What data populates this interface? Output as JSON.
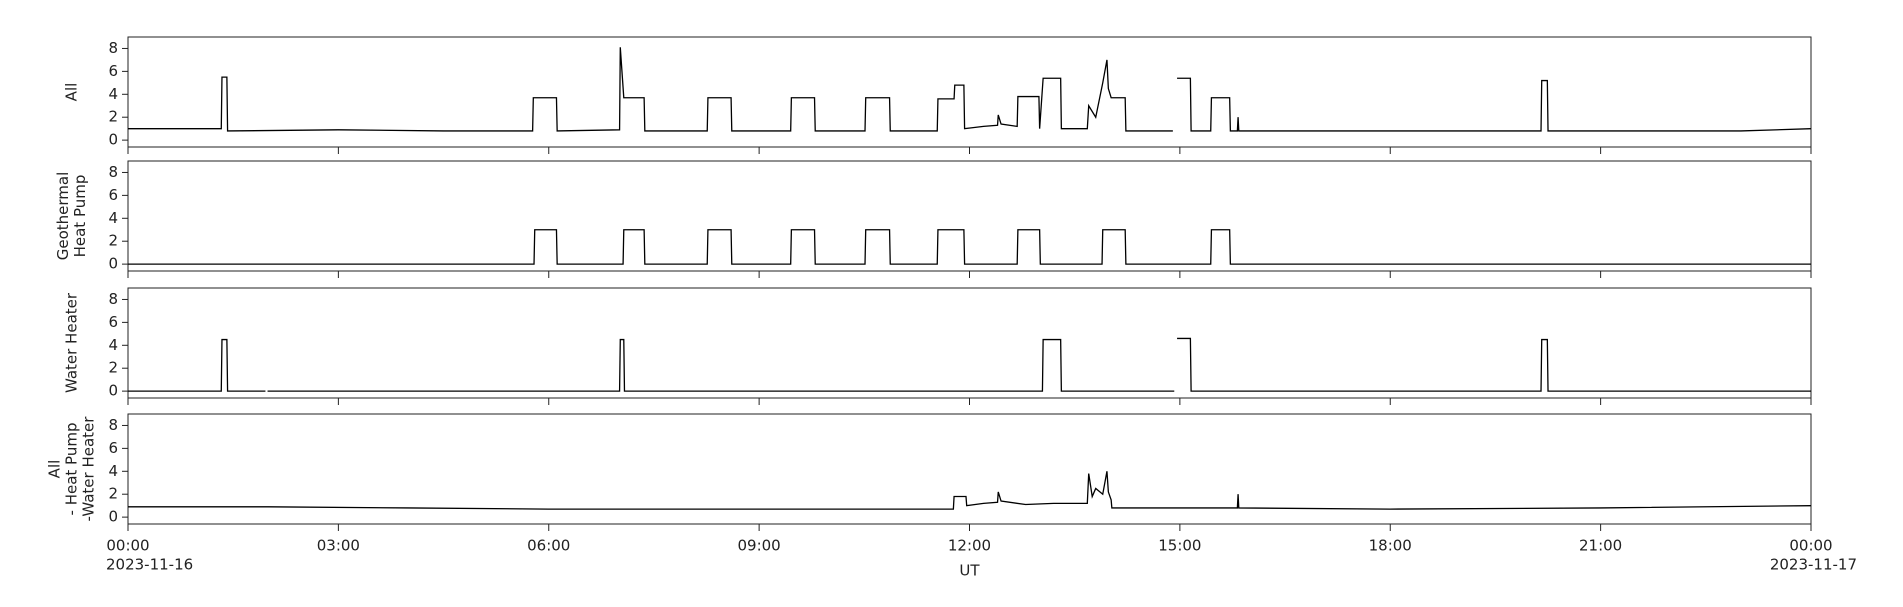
{
  "x_axis": {
    "label": "UT",
    "xlim": [
      0,
      24
    ],
    "xticks": [
      {
        "value": 0,
        "label": "00:00"
      },
      {
        "value": 3,
        "label": "03:00"
      },
      {
        "value": 6,
        "label": "06:00"
      },
      {
        "value": 9,
        "label": "09:00"
      },
      {
        "value": 12,
        "label": "12:00"
      },
      {
        "value": 15,
        "label": "15:00"
      },
      {
        "value": 18,
        "label": "18:00"
      },
      {
        "value": 21,
        "label": "21:00"
      },
      {
        "value": 24,
        "label": "00:00"
      }
    ],
    "date_labels": [
      "2023-11-16",
      "2023-11-17"
    ]
  },
  "chart_data": [
    {
      "type": "line",
      "ylabel": [
        "All"
      ],
      "color": "#000000",
      "ylim": [
        -0.6,
        9
      ],
      "yticks": [
        0,
        2,
        4,
        6,
        8
      ],
      "x": [
        0,
        1.33,
        1.34,
        1.41,
        1.42,
        3.0,
        4.5,
        5.77,
        5.78,
        6.11,
        6.12,
        7.01,
        7.02,
        7.07,
        7.36,
        7.37,
        8.26,
        8.27,
        8.6,
        8.61,
        9.45,
        9.46,
        9.79,
        9.8,
        10.51,
        10.52,
        10.86,
        10.87,
        11.54,
        11.55,
        11.78,
        11.79,
        11.92,
        11.93,
        12.2,
        12.4,
        12.41,
        12.45,
        12.68,
        12.69,
        12.99,
        13.0,
        13.05,
        13.3,
        13.31,
        13.68,
        13.7,
        13.8,
        13.9,
        13.96,
        13.98,
        14.02,
        14.22,
        14.23,
        14.9,
        14.93,
        14.96,
        15.15,
        15.16,
        15.44,
        15.45,
        15.71,
        15.72,
        15.82,
        15.83,
        15.84,
        18.0,
        20.15,
        20.16,
        20.24,
        20.25,
        23.0,
        24
      ],
      "values": [
        1.0,
        1.0,
        5.5,
        5.5,
        0.8,
        0.9,
        0.8,
        0.8,
        3.7,
        3.7,
        0.8,
        0.9,
        8.1,
        3.7,
        3.7,
        0.8,
        0.8,
        3.7,
        3.7,
        0.8,
        0.8,
        3.7,
        3.7,
        0.8,
        0.8,
        3.7,
        3.7,
        0.8,
        0.8,
        3.6,
        3.6,
        4.8,
        4.8,
        1.0,
        1.2,
        1.3,
        2.2,
        1.4,
        1.2,
        3.8,
        3.8,
        1.0,
        5.4,
        5.4,
        1.0,
        1.0,
        3.0,
        2.0,
        5.0,
        7.0,
        4.5,
        3.7,
        3.7,
        0.8,
        0.8,
        null,
        5.4,
        5.4,
        0.8,
        0.8,
        3.7,
        3.7,
        0.8,
        0.8,
        2.0,
        0.8,
        0.8,
        0.8,
        5.2,
        5.2,
        0.8,
        0.8,
        1.0
      ]
    },
    {
      "type": "line",
      "ylabel": [
        "Geothermal",
        "Heat Pump"
      ],
      "color": "#000000",
      "ylim": [
        -0.6,
        9
      ],
      "yticks": [
        0,
        2,
        4,
        6,
        8
      ],
      "x": [
        0,
        5.79,
        5.8,
        6.11,
        6.12,
        7.06,
        7.07,
        7.36,
        7.37,
        8.26,
        8.27,
        8.6,
        8.61,
        9.45,
        9.46,
        9.79,
        9.8,
        10.51,
        10.52,
        10.86,
        10.87,
        11.54,
        11.55,
        11.92,
        11.93,
        12.68,
        12.69,
        13.0,
        13.01,
        13.89,
        13.9,
        14.22,
        14.23,
        15.44,
        15.45,
        15.71,
        15.72,
        24
      ],
      "values": [
        0,
        0,
        3,
        3,
        0,
        0,
        3,
        3,
        0,
        0,
        3,
        3,
        0,
        0,
        3,
        3,
        0,
        0,
        3,
        3,
        0,
        0,
        3,
        3,
        0,
        0,
        3,
        3,
        0,
        0,
        3,
        3,
        0,
        0,
        3,
        3,
        0,
        0
      ]
    },
    {
      "type": "line",
      "ylabel": [
        "Water Heater"
      ],
      "color": "#000000",
      "ylim": [
        -0.6,
        9
      ],
      "yticks": [
        0,
        2,
        4,
        6,
        8
      ],
      "x": [
        0,
        1.33,
        1.34,
        1.41,
        1.42,
        1.96,
        1.97,
        1.99,
        7.01,
        7.02,
        7.07,
        7.08,
        13.04,
        13.05,
        13.3,
        13.31,
        14.92,
        14.93,
        14.96,
        15.15,
        15.16,
        20.15,
        20.16,
        20.24,
        20.25,
        24
      ],
      "values": [
        0,
        0,
        4.5,
        4.5,
        0,
        0,
        null,
        0,
        0,
        4.5,
        4.5,
        0,
        0,
        4.5,
        4.5,
        0,
        0,
        null,
        4.6,
        4.6,
        0,
        0,
        4.5,
        4.5,
        0,
        0
      ]
    },
    {
      "type": "line",
      "ylabel": [
        "All",
        "- Heat Pump",
        "-Water Heater"
      ],
      "color": "#000000",
      "ylim": [
        -0.6,
        9
      ],
      "yticks": [
        0,
        2,
        4,
        6,
        8
      ],
      "x": [
        0,
        2,
        4,
        6,
        8,
        10,
        11.77,
        11.78,
        11.95,
        11.96,
        12.2,
        12.4,
        12.41,
        12.45,
        12.8,
        13.2,
        13.68,
        13.7,
        13.75,
        13.8,
        13.9,
        13.96,
        13.98,
        14.02,
        14.03,
        15.0,
        15.82,
        15.83,
        15.84,
        18.0,
        21.0,
        24
      ],
      "values": [
        0.9,
        0.9,
        0.8,
        0.7,
        0.7,
        0.7,
        0.7,
        1.8,
        1.8,
        1.0,
        1.2,
        1.3,
        2.2,
        1.4,
        1.1,
        1.2,
        1.2,
        3.8,
        1.8,
        2.5,
        2.0,
        4.0,
        2.2,
        1.5,
        0.8,
        0.8,
        0.8,
        2.0,
        0.8,
        0.7,
        0.8,
        1.0
      ]
    }
  ]
}
